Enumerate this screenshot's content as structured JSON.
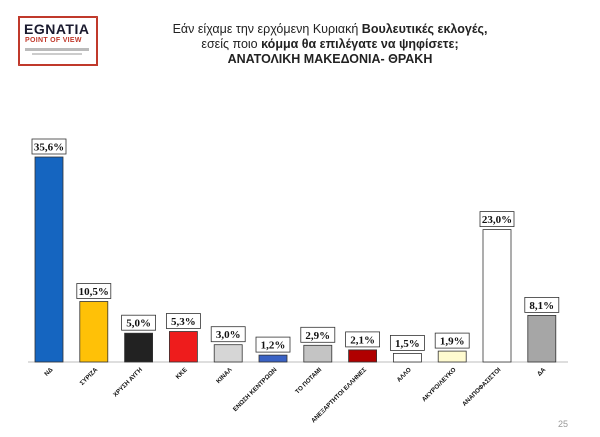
{
  "logo": {
    "brand": "EGNATIA",
    "tagline": "POINT OF VIEW"
  },
  "title": {
    "line1_normal": "Εάν είχαμε την ερχόμενη Κυριακή ",
    "line1_bold": "Βουλευτικές εκλογές,",
    "line2_normal": "εσείς ποιο ",
    "line2_bold": "κόμμα θα επιλέγατε να ψηφίσετε;",
    "line3": "ΑΝΑΤΟΛΙΚΗ ΜΑΚΕΔΟΝΙΑ- ΘΡΑΚΗ"
  },
  "page_number": "25",
  "chart_data": {
    "type": "bar",
    "categories": [
      "ΝΔ",
      "ΣΥΡΙΖΑ",
      "ΧΡΥΣΗ ΑΥΓΗ",
      "ΚΚΕ",
      "ΚΙΝΑΛ",
      "ΕΝΩΣΗ ΚΕΝΤΡΩΩΝ",
      "ΤΟ ΠΟΤΑΜΙ",
      "ΑΝΕΞΑΡΤΗΤΟΙ ΕΛΛΗΝΕΣ",
      "ΑΛΛΟ",
      "ΑΚΥΡΟ/ΛΕΥΚΟ",
      "ΑΝΑΠΟΦΑΣΙΣΤΟΙ",
      "ΔΑ"
    ],
    "values": [
      35.6,
      10.5,
      5.0,
      5.3,
      3.0,
      1.2,
      2.9,
      2.1,
      1.5,
      1.9,
      23.0,
      8.1
    ],
    "labels": [
      "35,6%",
      "10,5%",
      "5,0%",
      "5,3%",
      "3,0%",
      "1,2%",
      "2,9%",
      "2,1%",
      "1,5%",
      "1,9%",
      "23,0%",
      "8,1%"
    ],
    "colors": [
      "#1565c0",
      "#ffc107",
      "#222222",
      "#ee1c1c",
      "#d6d6d6",
      "#3a62c4",
      "#c4c4c4",
      "#b00000",
      "#ffffff",
      "#fffbd0",
      "#ffffff",
      "#a6a6a6"
    ],
    "ylim": [
      0,
      40
    ],
    "grid": false,
    "title": "",
    "xlabel": "",
    "ylabel": ""
  }
}
